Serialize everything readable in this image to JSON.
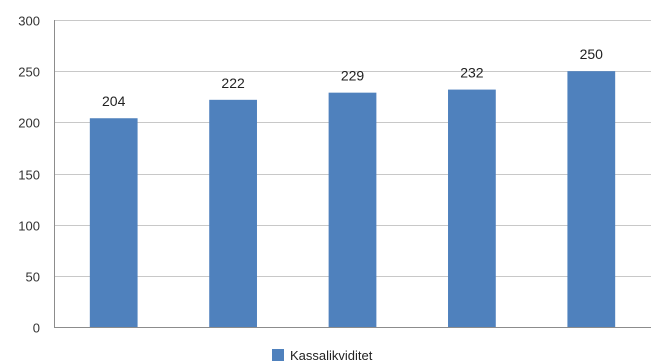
{
  "chart_data": {
    "type": "bar",
    "categories": [
      "",
      "",
      "",
      "",
      ""
    ],
    "series": [
      {
        "name": "Kassalikviditet",
        "values": [
          204,
          222,
          229,
          232,
          250
        ],
        "color": "#4f81bd"
      }
    ],
    "data_labels": [
      "204",
      "222",
      "229",
      "232",
      "250"
    ],
    "ylim": [
      0,
      300
    ],
    "yticks": [
      0,
      50,
      100,
      150,
      200,
      250,
      300
    ],
    "ytick_labels": [
      "0",
      "50",
      "100",
      "150",
      "200",
      "250",
      "300"
    ],
    "title": "",
    "xlabel": "",
    "ylabel": "",
    "grid": true,
    "legend_position": "bottom-center"
  }
}
